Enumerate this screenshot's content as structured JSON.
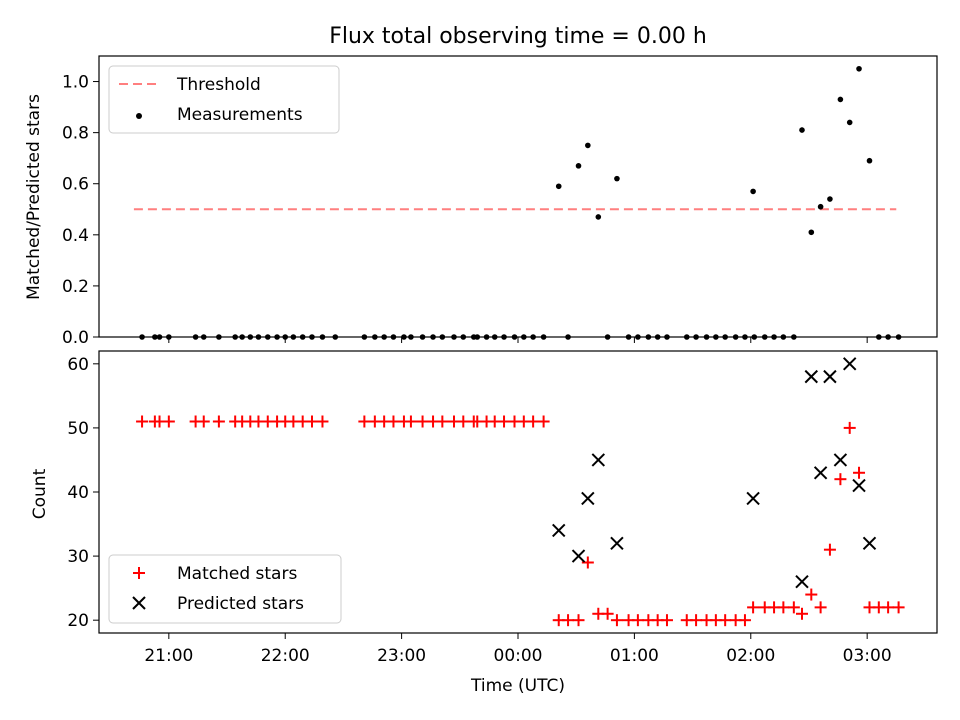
{
  "title": "Flux total observing time = 0.00 h",
  "chart_data": [
    {
      "type": "scatter",
      "ylabel": "Matched/Predicted stars",
      "ylim": [
        0,
        1.1
      ],
      "yticks": [
        "0.0",
        "0.2",
        "0.4",
        "0.6",
        "0.8",
        "1.0"
      ],
      "ytick_values": [
        0,
        0.2,
        0.4,
        0.6,
        0.8,
        1.0
      ],
      "legend_position": "top-left",
      "threshold": {
        "name": "Threshold",
        "value": 0.5,
        "x_range": [
          -3.3,
          3.25
        ],
        "color": "#ff7f7f"
      },
      "series": [
        {
          "name": "Measurements",
          "color": "#000000",
          "points": [
            [
              -3.23,
              0
            ],
            [
              -3.12,
              0
            ],
            [
              -3.08,
              0
            ],
            [
              -3.0,
              0
            ],
            [
              -2.77,
              0
            ],
            [
              -2.7,
              0
            ],
            [
              -2.57,
              0
            ],
            [
              -2.43,
              0
            ],
            [
              -2.37,
              0
            ],
            [
              -2.3,
              0
            ],
            [
              -2.23,
              0
            ],
            [
              -2.15,
              0
            ],
            [
              -2.07,
              0
            ],
            [
              -2.0,
              0
            ],
            [
              -1.93,
              0
            ],
            [
              -1.85,
              0
            ],
            [
              -1.77,
              0
            ],
            [
              -1.68,
              0
            ],
            [
              -1.57,
              0
            ],
            [
              -1.32,
              0
            ],
            [
              -1.23,
              0
            ],
            [
              -1.15,
              0
            ],
            [
              -1.07,
              0
            ],
            [
              -0.98,
              0
            ],
            [
              -0.92,
              0
            ],
            [
              -0.82,
              0
            ],
            [
              -0.73,
              0
            ],
            [
              -0.65,
              0
            ],
            [
              -0.55,
              0
            ],
            [
              -0.47,
              0
            ],
            [
              -0.38,
              0
            ],
            [
              -0.35,
              0
            ],
            [
              -0.27,
              0
            ],
            [
              -0.2,
              0
            ],
            [
              -0.12,
              0
            ],
            [
              -0.03,
              0
            ],
            [
              0.05,
              0
            ],
            [
              0.13,
              0
            ],
            [
              0.22,
              0
            ],
            [
              0.35,
              0.59
            ],
            [
              0.43,
              0
            ],
            [
              0.52,
              0.67
            ],
            [
              0.6,
              0.75
            ],
            [
              0.69,
              0.47
            ],
            [
              0.77,
              0
            ],
            [
              0.85,
              0.62
            ],
            [
              0.95,
              0
            ],
            [
              1.03,
              0
            ],
            [
              1.12,
              0
            ],
            [
              1.2,
              0
            ],
            [
              1.28,
              0
            ],
            [
              1.45,
              0
            ],
            [
              1.53,
              0
            ],
            [
              1.62,
              0
            ],
            [
              1.7,
              0
            ],
            [
              1.78,
              0
            ],
            [
              1.87,
              0
            ],
            [
              1.95,
              0
            ],
            [
              2.03,
              0
            ],
            [
              2.02,
              0.57
            ],
            [
              2.12,
              0
            ],
            [
              2.2,
              0
            ],
            [
              2.28,
              0
            ],
            [
              2.37,
              0
            ],
            [
              2.44,
              0.81
            ],
            [
              2.52,
              0.41
            ],
            [
              2.6,
              0.51
            ],
            [
              2.68,
              0.54
            ],
            [
              2.77,
              0.93
            ],
            [
              2.85,
              0.84
            ],
            [
              2.93,
              1.05
            ],
            [
              3.02,
              0.69
            ],
            [
              3.1,
              0
            ],
            [
              3.18,
              0
            ],
            [
              3.27,
              0
            ]
          ]
        }
      ]
    },
    {
      "type": "scatter",
      "xlabel": "Time (UTC)",
      "ylabel": "Count",
      "ylim": [
        18,
        62
      ],
      "yticks": [
        "20",
        "30",
        "40",
        "50",
        "60"
      ],
      "ytick_values": [
        20,
        30,
        40,
        50,
        60
      ],
      "xticks": [
        "21:00",
        "22:00",
        "23:00",
        "00:00",
        "01:00",
        "02:00",
        "03:00"
      ],
      "xtick_values": [
        -3,
        -2,
        -1,
        0,
        1,
        2,
        3
      ],
      "xlim": [
        -3.6,
        3.6
      ],
      "legend_position": "bottom-left",
      "series": [
        {
          "name": "Matched stars",
          "color": "#ff0000",
          "marker": "plus",
          "points": [
            [
              -3.23,
              51
            ],
            [
              -3.12,
              51
            ],
            [
              -3.08,
              51
            ],
            [
              -3.0,
              51
            ],
            [
              -2.77,
              51
            ],
            [
              -2.7,
              51
            ],
            [
              -2.57,
              51
            ],
            [
              -2.43,
              51
            ],
            [
              -2.37,
              51
            ],
            [
              -2.3,
              51
            ],
            [
              -2.23,
              51
            ],
            [
              -2.15,
              51
            ],
            [
              -2.07,
              51
            ],
            [
              -2.0,
              51
            ],
            [
              -1.93,
              51
            ],
            [
              -1.85,
              51
            ],
            [
              -1.77,
              51
            ],
            [
              -1.68,
              51
            ],
            [
              -1.32,
              51
            ],
            [
              -1.23,
              51
            ],
            [
              -1.15,
              51
            ],
            [
              -1.07,
              51
            ],
            [
              -0.98,
              51
            ],
            [
              -0.92,
              51
            ],
            [
              -0.82,
              51
            ],
            [
              -0.73,
              51
            ],
            [
              -0.65,
              51
            ],
            [
              -0.55,
              51
            ],
            [
              -0.47,
              51
            ],
            [
              -0.38,
              51
            ],
            [
              -0.35,
              51
            ],
            [
              -0.27,
              51
            ],
            [
              -0.2,
              51
            ],
            [
              -0.12,
              51
            ],
            [
              -0.03,
              51
            ],
            [
              0.05,
              51
            ],
            [
              0.13,
              51
            ],
            [
              0.22,
              51
            ],
            [
              0.35,
              20
            ],
            [
              0.43,
              20
            ],
            [
              0.52,
              20
            ],
            [
              0.6,
              29
            ],
            [
              0.69,
              21
            ],
            [
              0.77,
              21
            ],
            [
              0.85,
              20
            ],
            [
              0.95,
              20
            ],
            [
              1.03,
              20
            ],
            [
              1.12,
              20
            ],
            [
              1.2,
              20
            ],
            [
              1.28,
              20
            ],
            [
              1.45,
              20
            ],
            [
              1.53,
              20
            ],
            [
              1.62,
              20
            ],
            [
              1.7,
              20
            ],
            [
              1.78,
              20
            ],
            [
              1.87,
              20
            ],
            [
              1.95,
              20
            ],
            [
              2.02,
              22
            ],
            [
              2.12,
              22
            ],
            [
              2.2,
              22
            ],
            [
              2.28,
              22
            ],
            [
              2.37,
              22
            ],
            [
              2.44,
              21
            ],
            [
              2.52,
              24
            ],
            [
              2.6,
              22
            ],
            [
              2.68,
              31
            ],
            [
              2.77,
              42
            ],
            [
              2.85,
              50
            ],
            [
              2.93,
              43
            ],
            [
              3.02,
              22
            ],
            [
              3.1,
              22
            ],
            [
              3.18,
              22
            ],
            [
              3.27,
              22
            ]
          ]
        },
        {
          "name": "Predicted stars",
          "color": "#000000",
          "marker": "x",
          "points": [
            [
              0.35,
              34
            ],
            [
              0.52,
              30
            ],
            [
              0.6,
              39
            ],
            [
              0.69,
              45
            ],
            [
              0.85,
              32
            ],
            [
              2.02,
              39
            ],
            [
              2.44,
              26
            ],
            [
              2.52,
              58
            ],
            [
              2.6,
              43
            ],
            [
              2.68,
              58
            ],
            [
              2.77,
              45
            ],
            [
              2.85,
              60
            ],
            [
              2.93,
              41
            ],
            [
              3.02,
              32
            ]
          ]
        }
      ]
    }
  ]
}
